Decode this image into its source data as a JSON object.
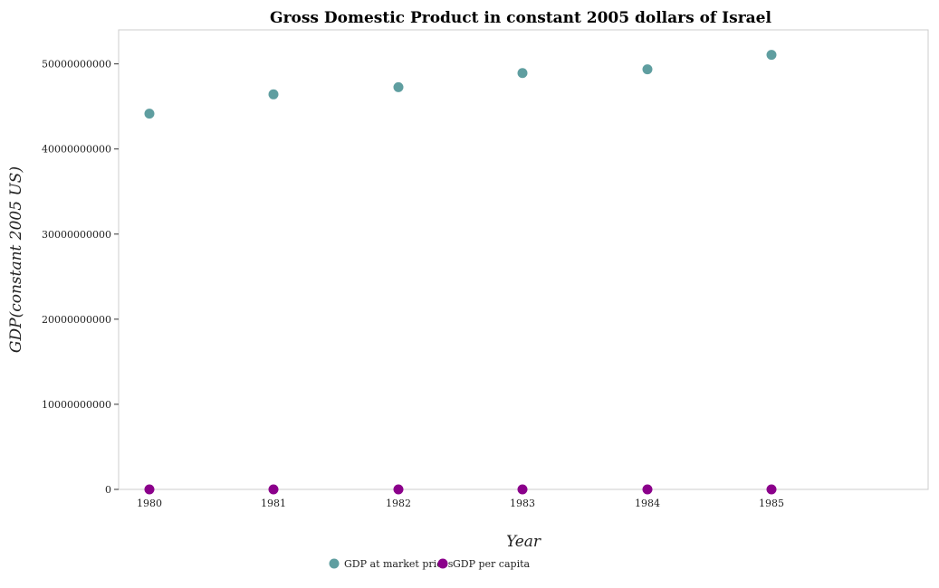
{
  "chart_data": {
    "type": "scatter",
    "title": "Gross Domestic Product in constant 2005 dollars of Israel",
    "xlabel": "Year",
    "ylabel": "GDP(constant 2005 US)",
    "categories": [
      "1980",
      "1981",
      "1982",
      "1983",
      "1984",
      "1985"
    ],
    "ylim": [
      0,
      54000000000
    ],
    "yticks": [
      0,
      10000000000,
      20000000000,
      30000000000,
      40000000000,
      50000000000
    ],
    "ytick_labels": [
      "0",
      "10000000000",
      "20000000000",
      "30000000000",
      "40000000000",
      "50000000000"
    ],
    "grid": false,
    "legend_position": "bottom",
    "series": [
      {
        "name": "GDP at market prices",
        "color": "#5f9ea0",
        "values": [
          44150000000,
          46420000000,
          47260000000,
          48920000000,
          49360000000,
          51060000000
        ]
      },
      {
        "name": "GDP per capita",
        "color": "#8b008b",
        "values": [
          11380,
          11710,
          11690,
          11910,
          11810,
          12150
        ]
      }
    ]
  }
}
